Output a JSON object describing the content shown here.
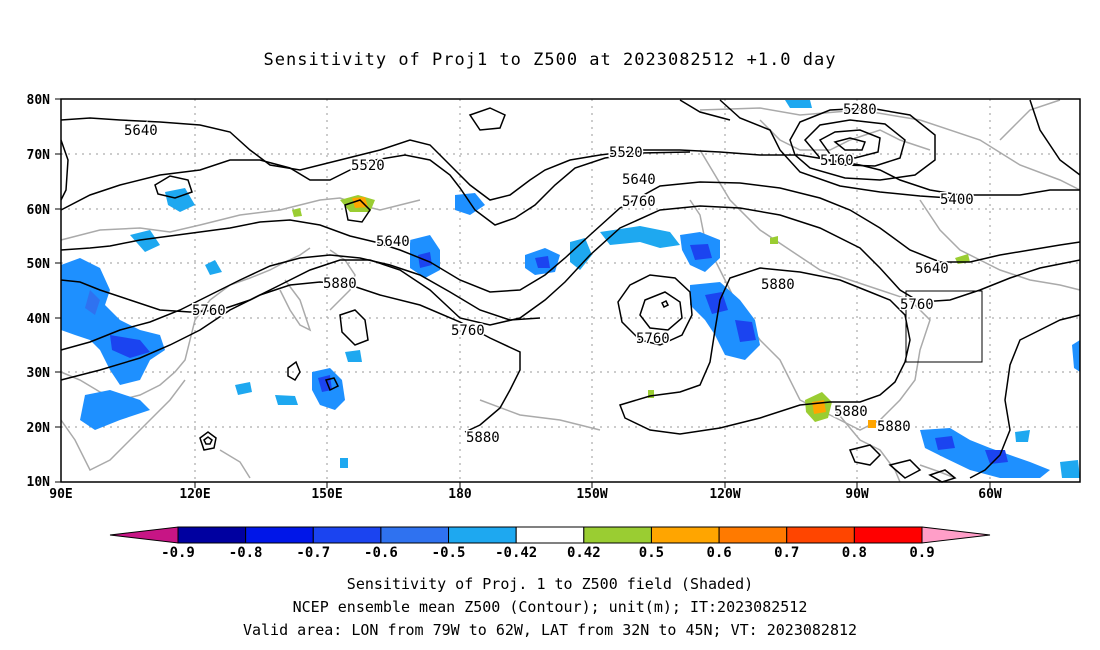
{
  "title": "Sensitivity of Proj1 to Z500 at 2023082512 +1.0 day",
  "lat_labels": [
    "80N",
    "70N",
    "60N",
    "50N",
    "40N",
    "30N",
    "20N",
    "10N"
  ],
  "lon_labels": [
    "90E",
    "120E",
    "150E",
    "180",
    "150W",
    "120W",
    "90W",
    "60W"
  ],
  "contour_labels": [
    {
      "text": "5640"
    },
    {
      "text": "5520"
    },
    {
      "text": "5640"
    },
    {
      "text": "5880"
    },
    {
      "text": "5760"
    },
    {
      "text": "5760"
    },
    {
      "text": "5520"
    },
    {
      "text": "5640"
    },
    {
      "text": "5760"
    },
    {
      "text": "5760"
    },
    {
      "text": "5880"
    },
    {
      "text": "5880"
    },
    {
      "text": "5280"
    },
    {
      "text": "5160"
    },
    {
      "text": "5400"
    },
    {
      "text": "5640"
    },
    {
      "text": "5760"
    },
    {
      "text": "5880"
    },
    {
      "text": "5880"
    }
  ],
  "colorbar": {
    "labels": [
      "-0.9",
      "-0.8",
      "-0.7",
      "-0.6",
      "-0.5",
      "-0.42",
      "0.42",
      "0.5",
      "0.6",
      "0.7",
      "0.8",
      "0.9"
    ],
    "colors": [
      "#0000a0",
      "#0016e8",
      "#1b44f0",
      "#2f72f0",
      "#1ea8f0",
      "#ffffff",
      "#9acd32",
      "#ffa500",
      "#ff7a00",
      "#ff4500",
      "#ff0000"
    ],
    "low_end_color": "#c71585",
    "high_end_color": "#ff9ec8"
  },
  "captions": [
    "Sensitivity of Proj. 1 to Z500 field (Shaded)",
    "NCEP ensemble mean Z500 (Contour); unit(m); IT:2023082512",
    "Valid area: LON from 79W to 62W, LAT from 32N to 45N; VT: 2023082812"
  ],
  "colors": {
    "land": "#aaaaaa",
    "contour": "#000000",
    "grid": "#999999",
    "sens_neg": "#1e90ff",
    "sens_pos": "#9acd32"
  }
}
